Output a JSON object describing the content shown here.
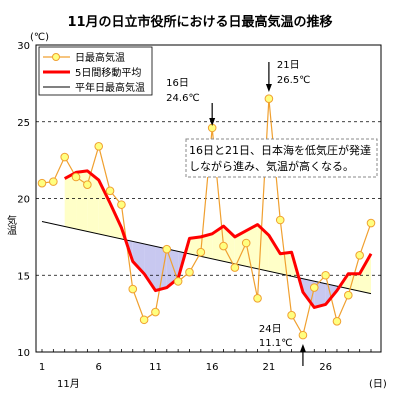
{
  "chart_data": {
    "type": "line",
    "title": "11月の日立市役所における日最高気温の推移",
    "y_unit": "(℃)",
    "x_unit": "(日)",
    "month_label": "11月",
    "ylabel": "気温",
    "ylim": [
      10,
      30
    ],
    "xlim": [
      1,
      30
    ],
    "yticks": [
      10,
      15,
      20,
      25,
      30
    ],
    "xtick_labels": [
      {
        "day": 1,
        "label": "1"
      },
      {
        "day": 6,
        "label": "6"
      },
      {
        "day": 11,
        "label": "11"
      },
      {
        "day": 16,
        "label": "16"
      },
      {
        "day": 21,
        "label": "21"
      },
      {
        "day": 26,
        "label": "26"
      }
    ],
    "grid": "horizontal dashed",
    "legend_position": "top-left",
    "series": [
      {
        "name": "日最高気温",
        "color": "#f0a030",
        "marker_color": "#ffff80",
        "x": [
          1,
          2,
          3,
          4,
          5,
          6,
          7,
          8,
          9,
          10,
          11,
          12,
          13,
          14,
          15,
          16,
          17,
          18,
          19,
          20,
          21,
          22,
          23,
          24,
          25,
          26,
          27,
          28,
          29,
          30
        ],
        "values": [
          21.0,
          21.1,
          22.7,
          21.4,
          20.9,
          23.4,
          20.5,
          19.6,
          14.1,
          12.1,
          12.6,
          16.7,
          14.6,
          15.2,
          16.5,
          24.6,
          16.9,
          15.5,
          17.1,
          13.5,
          26.5,
          18.6,
          12.4,
          11.1,
          14.2,
          15.0,
          12.0,
          13.7,
          16.3,
          18.4
        ]
      },
      {
        "name": "5日間移動平均",
        "color": "#ff0000",
        "x": [
          3,
          4,
          5,
          6,
          7,
          8,
          9,
          10,
          11,
          12,
          13,
          14,
          15,
          16,
          17,
          18,
          19,
          20,
          21,
          22,
          23,
          24,
          25,
          26,
          27,
          28,
          29,
          30
        ],
        "values": [
          21.3,
          21.7,
          21.8,
          21.2,
          19.7,
          18.1,
          15.9,
          15.1,
          14.0,
          14.2,
          14.8,
          17.4,
          17.5,
          17.7,
          18.2,
          17.5,
          17.9,
          18.3,
          17.6,
          16.4,
          16.5,
          13.9,
          12.9,
          13.1,
          14.0,
          15.1,
          15.1,
          16.4
        ]
      },
      {
        "name": "平年日最高気温",
        "color": "#000000",
        "x": [
          1,
          30
        ],
        "values": [
          18.5,
          13.8
        ]
      }
    ],
    "annotations": [
      {
        "day": 16,
        "label1": "16日",
        "label2": "24.6℃"
      },
      {
        "day": 21,
        "label1": "21日",
        "label2": "26.5℃"
      },
      {
        "day": 24,
        "label1": "24日",
        "label2": "11.1℃"
      }
    ],
    "note": [
      "16日と21日、日本海を低気圧が発達",
      "しながら進み、気温が高くなる。"
    ],
    "colors": {
      "above_normal_fill": "#ffffc8",
      "below_normal_fill": "#c8c8f0",
      "grid": "#000000"
    }
  }
}
